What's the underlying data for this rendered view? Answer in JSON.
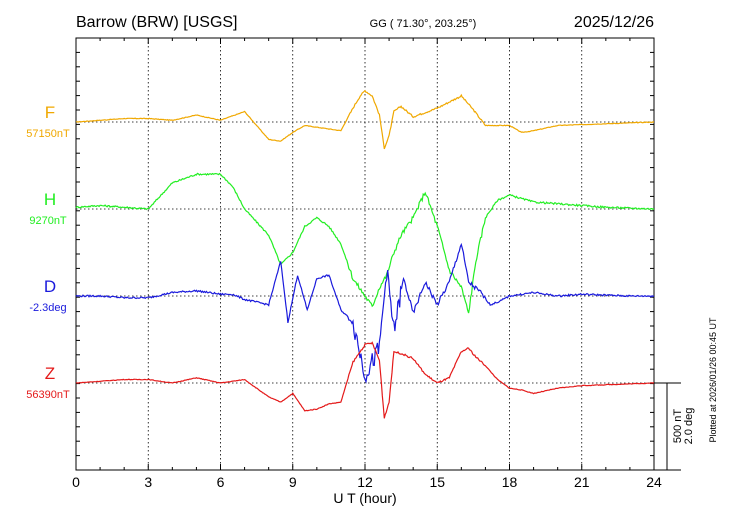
{
  "header": {
    "title": "Barrow (BRW)  [USGS]",
    "coords": "GG ( 71.30°, 203.25°)",
    "date": "2025/12/26"
  },
  "footer": {
    "xlabel": "U T (hour)",
    "plotted": "Plotted at 2026/01/26 00:45 UT"
  },
  "scale": {
    "nt": "500 nT",
    "deg": "2.0 deg"
  },
  "chart_data": {
    "type": "line",
    "xlabel": "U T (hour)",
    "xlim": [
      0,
      24
    ],
    "xticks": [
      "0",
      "3",
      "6",
      "9",
      "12",
      "15",
      "18",
      "21",
      "24"
    ],
    "grid": true,
    "series": [
      {
        "name": "F",
        "baseline_label": "57150nT",
        "color": "#f0a800",
        "x": [
          0,
          2,
          3,
          4,
          5,
          6,
          7,
          8,
          8.5,
          9,
          9.5,
          10,
          10.5,
          11,
          11.5,
          11.8,
          12,
          12.3,
          12.6,
          12.8,
          13,
          13.2,
          13.5,
          14,
          15,
          16,
          16.5,
          17,
          18,
          18.5,
          19,
          20,
          21,
          22,
          23,
          24
        ],
        "y": [
          0,
          20,
          20,
          10,
          40,
          10,
          60,
          -100,
          -110,
          -60,
          -20,
          -30,
          -40,
          -50,
          80,
          150,
          180,
          150,
          40,
          -150,
          -80,
          60,
          90,
          30,
          80,
          150,
          70,
          -20,
          -20,
          -60,
          -50,
          -20,
          -15,
          -10,
          -5,
          0
        ]
      },
      {
        "name": "H",
        "baseline_label": "9270nT",
        "color": "#22ee22",
        "x": [
          0,
          1,
          2,
          3,
          4,
          5,
          6,
          6.5,
          7,
          8,
          8.5,
          9,
          9.5,
          10,
          10.5,
          11,
          11.5,
          12,
          12.3,
          12.6,
          12.9,
          13.2,
          13.5,
          14,
          14.5,
          15,
          15.5,
          16,
          16.3,
          16.6,
          17,
          17.5,
          18,
          19,
          20,
          21,
          22,
          23,
          24
        ],
        "y": [
          10,
          20,
          10,
          0,
          150,
          200,
          200,
          130,
          0,
          -150,
          -320,
          -250,
          -100,
          -50,
          -100,
          -200,
          -400,
          -500,
          -560,
          -450,
          -380,
          -250,
          -150,
          -50,
          100,
          -100,
          -350,
          -450,
          -600,
          -300,
          -50,
          50,
          80,
          40,
          30,
          20,
          10,
          5,
          0
        ]
      },
      {
        "name": "D",
        "baseline_label": "-2.3deg",
        "color": "#1a1adc",
        "x": [
          0,
          1,
          2,
          3,
          4,
          5,
          6,
          6.5,
          7,
          8,
          8.5,
          8.8,
          9.2,
          9.6,
          10,
          10.5,
          11,
          11.5,
          12,
          12.3,
          12.6,
          12.9,
          13.2,
          13.6,
          14,
          14.5,
          15,
          15.5,
          16,
          16.3,
          16.8,
          17.2,
          17.6,
          18,
          19,
          20,
          21,
          22,
          23,
          24
        ],
        "y": [
          0,
          0,
          -10,
          -10,
          20,
          30,
          10,
          10,
          -20,
          -50,
          200,
          -150,
          120,
          -80,
          100,
          120,
          -80,
          -150,
          -450,
          -380,
          -300,
          150,
          -200,
          100,
          -100,
          80,
          -50,
          80,
          300,
          80,
          20,
          -50,
          -30,
          0,
          20,
          0,
          10,
          5,
          0,
          0
        ]
      },
      {
        "name": "Z",
        "baseline_label": "56390nT",
        "color": "#e41a1a",
        "x": [
          0,
          2,
          3,
          4,
          5,
          6,
          7,
          8,
          8.5,
          9,
          9.5,
          10,
          10.5,
          11,
          11.5,
          11.8,
          12,
          12.3,
          12.6,
          12.8,
          13,
          13.2,
          13.5,
          14,
          14.5,
          15,
          15.5,
          16,
          16.3,
          16.6,
          17,
          17.5,
          18,
          18.5,
          19,
          20,
          21,
          22,
          23,
          24
        ],
        "y": [
          0,
          20,
          20,
          0,
          30,
          0,
          20,
          -80,
          -110,
          -60,
          -160,
          -150,
          -120,
          -110,
          120,
          180,
          220,
          230,
          130,
          -200,
          -110,
          180,
          170,
          140,
          50,
          0,
          30,
          180,
          200,
          150,
          100,
          20,
          -30,
          -40,
          -60,
          -30,
          -15,
          -10,
          -5,
          0
        ]
      }
    ]
  }
}
